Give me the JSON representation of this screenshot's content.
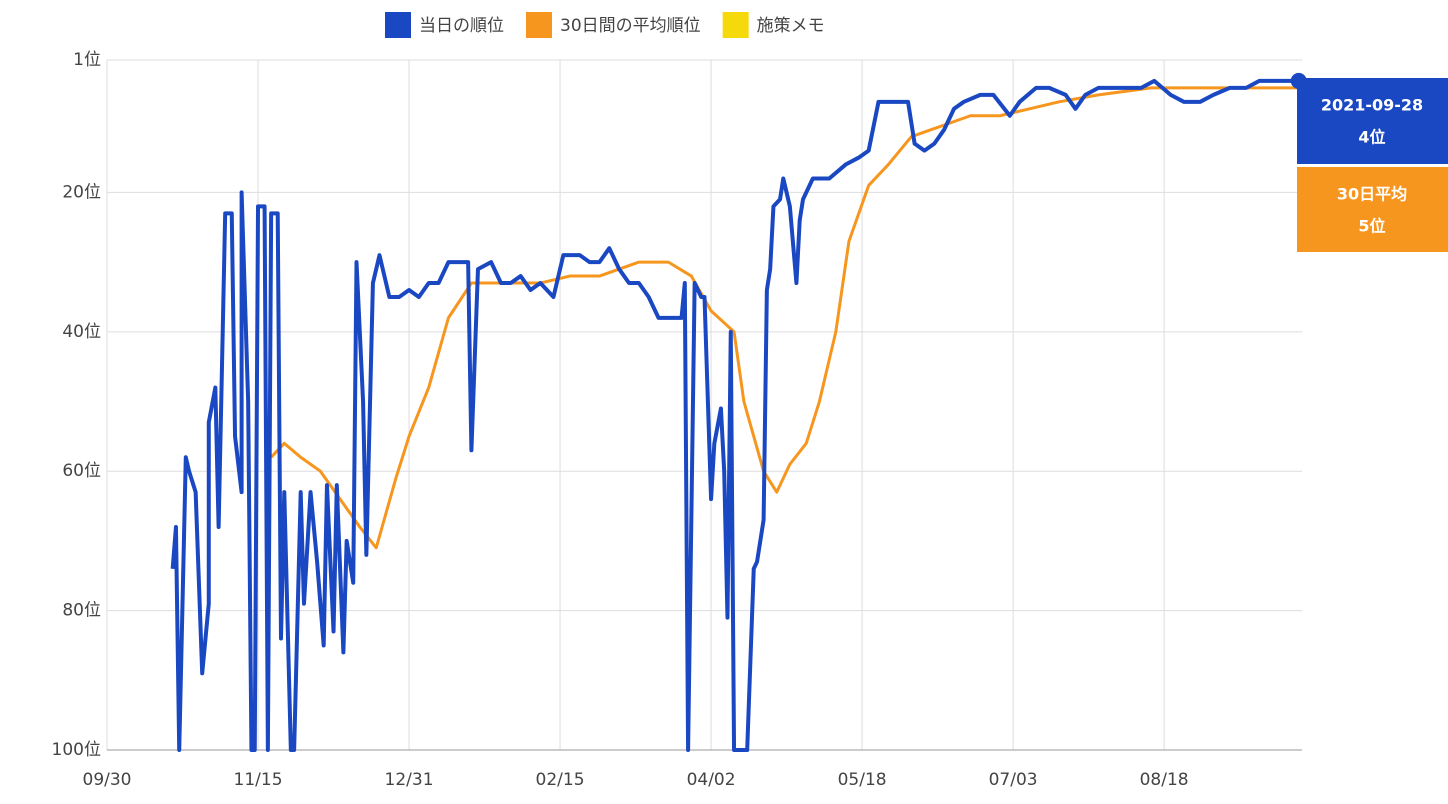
{
  "chart_data": {
    "type": "line",
    "y_inverted": true,
    "grid": true,
    "legend": "top",
    "xlim": [
      0,
      364
    ],
    "xticks": [
      {
        "value": 0,
        "label": "09/30"
      },
      {
        "value": 46,
        "label": "11/15"
      },
      {
        "value": 92,
        "label": "12/31"
      },
      {
        "value": 138,
        "label": "02/15"
      },
      {
        "value": 184,
        "label": "04/02"
      },
      {
        "value": 230,
        "label": "05/18"
      },
      {
        "value": 276,
        "label": "07/03"
      },
      {
        "value": 322,
        "label": "08/18"
      }
    ],
    "ylim": [
      1,
      100
    ],
    "yticks": [
      {
        "value": 1,
        "label": "1位"
      },
      {
        "value": 20,
        "label": "20位"
      },
      {
        "value": 40,
        "label": "40位"
      },
      {
        "value": 60,
        "label": "60位"
      },
      {
        "value": 80,
        "label": "80位"
      },
      {
        "value": 100,
        "label": "100位"
      }
    ],
    "series": [
      {
        "name": "当日の順位",
        "color": "#1a47c2",
        "x": [
          20,
          21,
          22,
          24,
          25,
          27,
          29,
          31,
          31,
          33,
          34,
          36,
          38,
          39,
          41,
          41,
          43,
          44,
          45,
          46,
          48,
          49,
          50,
          52,
          53,
          54,
          56,
          57,
          59,
          60,
          62,
          64,
          66,
          67,
          69,
          70,
          72,
          73,
          75,
          76,
          78,
          79,
          81,
          83,
          86,
          89,
          92,
          95,
          98,
          101,
          104,
          107,
          110,
          111,
          113,
          117,
          120,
          123,
          126,
          129,
          132,
          136,
          139,
          144,
          147,
          150,
          153,
          156,
          159,
          162,
          165,
          168,
          171,
          175,
          176,
          177,
          179,
          181,
          182,
          184,
          185,
          187,
          188,
          189,
          190,
          191,
          193,
          195,
          197,
          198,
          200,
          201,
          202,
          203,
          205,
          206,
          208,
          210,
          211,
          212,
          215,
          217,
          220,
          225,
          229,
          232,
          235,
          238,
          241,
          244,
          246,
          249,
          252,
          255,
          258,
          261,
          266,
          270,
          275,
          278,
          283,
          287,
          292,
          295,
          298,
          302,
          309,
          315,
          319,
          324,
          328,
          333,
          337,
          342,
          347,
          351,
          356,
          363
        ],
        "values": [
          74,
          68,
          100,
          58,
          60,
          63,
          89,
          79,
          53,
          48,
          68,
          23,
          23,
          55,
          63,
          20,
          50,
          100,
          100,
          22,
          22,
          100,
          23,
          23,
          84,
          63,
          100,
          100,
          63,
          79,
          63,
          73,
          85,
          62,
          83,
          62,
          86,
          70,
          76,
          30,
          50,
          72,
          33,
          29,
          35,
          35,
          34,
          35,
          33,
          33,
          30,
          30,
          30,
          57,
          31,
          30,
          33,
          33,
          32,
          34,
          33,
          35,
          29,
          29,
          30,
          30,
          28,
          31,
          33,
          33,
          35,
          38,
          38,
          38,
          33,
          100,
          33,
          35,
          35,
          64,
          56,
          51,
          60,
          81,
          40,
          100,
          100,
          100,
          74,
          73,
          67,
          34,
          31,
          22,
          21,
          18,
          22,
          33,
          24,
          21,
          18,
          18,
          18,
          16,
          15,
          14,
          7,
          7,
          7,
          7,
          13,
          14,
          13,
          11,
          8,
          7,
          6,
          6,
          9,
          7,
          5,
          5,
          6,
          8,
          6,
          5,
          5,
          5,
          4,
          6,
          7,
          7,
          6,
          5,
          5,
          4,
          4,
          4
        ]
      },
      {
        "name": "30日間の平均順位",
        "color": "#f7961e",
        "x": [
          50,
          54,
          59,
          65,
          71,
          77,
          82,
          88,
          92,
          98,
          104,
          111,
          120,
          132,
          141,
          150,
          162,
          171,
          178,
          184,
          191,
          194,
          200,
          204,
          208,
          213,
          217,
          222,
          226,
          232,
          238,
          245,
          251,
          257,
          263,
          272,
          281,
          290,
          302,
          318,
          333,
          348,
          360,
          363
        ],
        "values": [
          58,
          56,
          58,
          60,
          64,
          68,
          71,
          61,
          55,
          48,
          38,
          33,
          33,
          33,
          32,
          32,
          30,
          30,
          32,
          37,
          40,
          50,
          60,
          63,
          59,
          56,
          50,
          40,
          27,
          19,
          16,
          12,
          11,
          10,
          9,
          9,
          8,
          7,
          6,
          5,
          5,
          5,
          5,
          5
        ]
      }
    ],
    "legend_extra": [
      {
        "name": "施策メモ",
        "color": "#f5d90a"
      }
    ],
    "annotations": [
      {
        "date": "2021-09-28",
        "rank": "4位"
      },
      {
        "label": "30日平均",
        "rank": "5位"
      }
    ]
  }
}
